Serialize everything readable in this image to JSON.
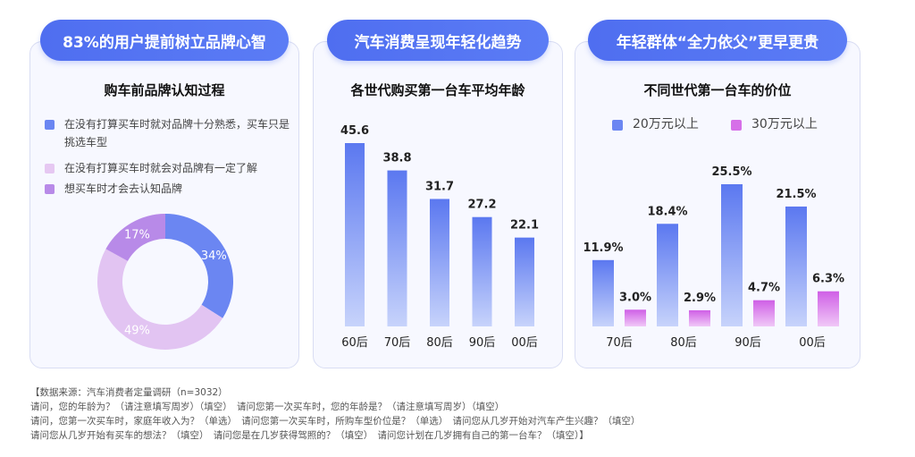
{
  "panels": [
    {
      "pill": "83%的用户提前树立品牌心智",
      "title": "购车前品牌认知过程"
    },
    {
      "pill": "汽车消费呈现年轻化趋势",
      "title": "各世代购买第一台车平均年龄"
    },
    {
      "pill": "年轻群体“全力依父”更早更贵",
      "title": "不同世代第一台车的价位"
    }
  ],
  "colors": {
    "blue": "#6b86f2",
    "light_purple": "#e6c2f0",
    "purple": "#b07fe8",
    "magenta": "#d66fe8"
  },
  "chart_data": [
    {
      "type": "pie",
      "title": "购车前品牌认知过程",
      "legend": [
        "在没有打算买车时就对品牌十分熟悉，买车只是挑选车型",
        "在没有打算买车时就会对品牌有一定了解",
        "想买车时才会去认知品牌"
      ],
      "slices": [
        {
          "name": "在没有打算买车时就对品牌十分熟悉，买车只是挑选车型",
          "value": 34,
          "label": "34%",
          "color": "#6b86f2"
        },
        {
          "name": "在没有打算买车时就会对品牌有一定了解",
          "value": 49,
          "label": "49%",
          "color": "#e2c4f2"
        },
        {
          "name": "想买车时才会去认知品牌",
          "value": 17,
          "label": "17%",
          "color": "#b88ae8"
        }
      ]
    },
    {
      "type": "bar",
      "title": "各世代购买第一台车平均年龄",
      "categories": [
        "60后",
        "70后",
        "80后",
        "90后",
        "00后"
      ],
      "values": [
        45.6,
        38.8,
        31.7,
        27.2,
        22.1
      ],
      "labels": [
        "45.6",
        "38.8",
        "31.7",
        "27.2",
        "22.1"
      ],
      "ylim": [
        0,
        50
      ]
    },
    {
      "type": "bar",
      "title": "不同世代第一台车的价位",
      "categories": [
        "70后",
        "80后",
        "90后",
        "00后"
      ],
      "series": [
        {
          "name": "20万元以上",
          "values": [
            11.9,
            18.4,
            25.5,
            21.5
          ],
          "labels": [
            "11.9%",
            "18.4%",
            "25.5%",
            "21.5%"
          ],
          "color": "#6b86f2"
        },
        {
          "name": "30万元以上",
          "values": [
            3.0,
            2.9,
            4.7,
            6.3
          ],
          "labels": [
            "3.0%",
            "2.9%",
            "4.7%",
            "6.3%"
          ],
          "color": "#d66fe8"
        }
      ],
      "ylim": [
        0,
        30
      ]
    }
  ],
  "footer": [
    "【数据来源：汽车消费者定量调研（n=3032）",
    "请问，您的年龄为？（请注意填写周岁）（填空）　请问您第一次买车时，您的年龄是？（请注意填写周岁）（填空）",
    "请问，您第一次买车时，家庭年收入为？（单选）　请问您第一次买车时，所购车型价位是？（单选）　请问您从几岁开始对汽车产生兴趣？（填空）",
    "请问您从几岁开始有买车的想法？（填空）　请问您是在几岁获得驾照的？（填空）　请问您计划在几岁拥有自己的第一台车？（填空）】"
  ]
}
